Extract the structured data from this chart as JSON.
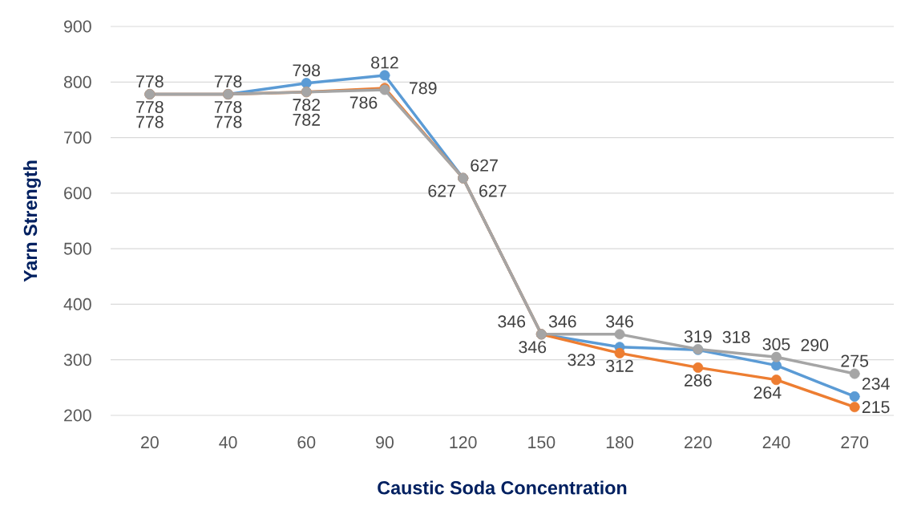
{
  "chart_data": {
    "type": "line",
    "xlabel": "Caustic Soda Concentration",
    "ylabel": "Yarn Strength",
    "categories": [
      "20",
      "40",
      "60",
      "90",
      "120",
      "150",
      "180",
      "220",
      "240",
      "270"
    ],
    "series": [
      {
        "color": "#5b9bd5",
        "values": [
          778,
          778,
          798,
          812,
          627,
          346,
          323,
          318,
          290,
          234
        ]
      },
      {
        "color": "#ed7d31",
        "values": [
          778,
          778,
          782,
          789,
          627,
          346,
          312,
          286,
          264,
          215
        ]
      },
      {
        "color": "#a5a5a5",
        "values": [
          778,
          778,
          782,
          786,
          627,
          346,
          346,
          319,
          305,
          275
        ]
      }
    ],
    "ylim": [
      200,
      900
    ],
    "yticks": [
      200,
      300,
      400,
      500,
      600,
      700,
      800,
      900
    ],
    "grid": "y",
    "marker": "circle",
    "line_style": "solid",
    "data_labels": true
  }
}
